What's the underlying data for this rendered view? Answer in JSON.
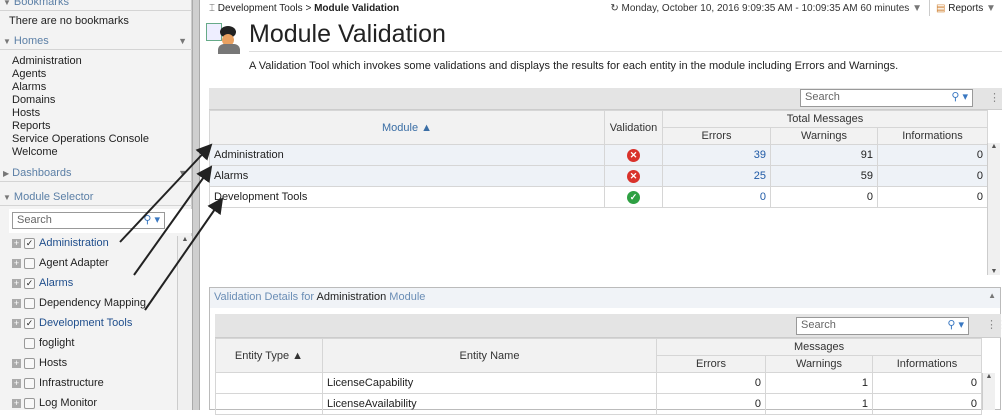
{
  "sidebar": {
    "bookmarks_label": "Bookmarks",
    "bookmarks_empty": "There are no bookmarks",
    "homes_label": "Homes",
    "homes": [
      "Administration",
      "Agents",
      "Alarms",
      "Domains",
      "Hosts",
      "Reports",
      "Service Operations Console",
      "Welcome"
    ],
    "dashboards_label": "Dashboards",
    "module_selector_label": "Module Selector",
    "search_placeholder": "Search",
    "modules": [
      {
        "label": "Administration",
        "checked": true,
        "expandable": true
      },
      {
        "label": "Agent Adapter",
        "checked": false,
        "expandable": true
      },
      {
        "label": "Alarms",
        "checked": true,
        "expandable": true
      },
      {
        "label": "Dependency Mapping",
        "checked": false,
        "expandable": true
      },
      {
        "label": "Development Tools",
        "checked": true,
        "expandable": true
      },
      {
        "label": "foglight",
        "checked": false,
        "expandable": false
      },
      {
        "label": "Hosts",
        "checked": false,
        "expandable": true
      },
      {
        "label": "Infrastructure",
        "checked": false,
        "expandable": true
      },
      {
        "label": "Log Monitor",
        "checked": false,
        "expandable": true
      }
    ]
  },
  "header": {
    "breadcrumb_parent": "Development Tools",
    "breadcrumb_sep": ">",
    "breadcrumb_current": "Module Validation",
    "time_range": "Monday, October 10, 2016 9:09:35 AM - 10:09:35 AM 60 minutes",
    "reports_label": "Reports",
    "title": "Module Validation",
    "description": "A Validation Tool which invokes some validations and displays the results for each entity in the module including Errors and Warnings."
  },
  "main_table": {
    "search_placeholder": "Search",
    "col_module": "Module ▲",
    "col_validation": "Validation",
    "col_total": "Total Messages",
    "col_errors": "Errors",
    "col_warnings": "Warnings",
    "col_informations": "Informations",
    "rows": [
      {
        "module": "Administration",
        "status": "error",
        "errors": "39",
        "warnings": "91",
        "informations": "0"
      },
      {
        "module": "Alarms",
        "status": "error",
        "errors": "25",
        "warnings": "59",
        "informations": "0"
      },
      {
        "module": "Development Tools",
        "status": "ok",
        "errors": "0",
        "warnings": "0",
        "informations": "0"
      }
    ]
  },
  "details": {
    "title_prefix": "Validation Details for",
    "title_module": "Administration",
    "title_suffix": "Module",
    "search_placeholder": "Search",
    "col_entity_type": "Entity Type ▲",
    "col_entity_name": "Entity Name",
    "col_messages": "Messages",
    "col_errors": "Errors",
    "col_warnings": "Warnings",
    "col_informations": "Informations",
    "rows": [
      {
        "entity_type": "",
        "entity_name": "LicenseCapability",
        "errors": "0",
        "warnings": "1",
        "informations": "0"
      },
      {
        "entity_type": "",
        "entity_name": "LicenseAvailability",
        "errors": "0",
        "warnings": "1",
        "informations": "0"
      }
    ]
  },
  "colors": {
    "accent": "#5b7fa6",
    "error": "#d9322b",
    "ok": "#2ea043"
  }
}
